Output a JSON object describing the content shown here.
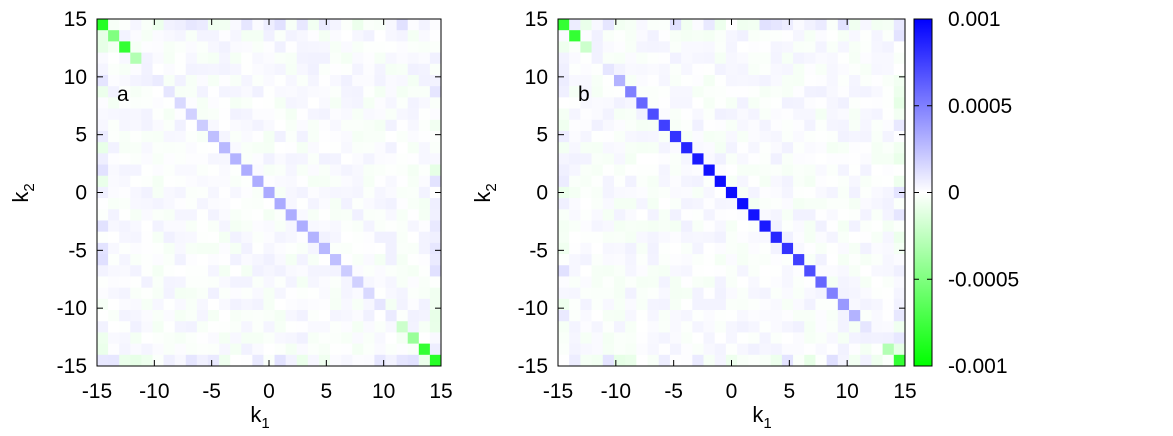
{
  "chart_data": [
    {
      "type": "heatmap",
      "panel_label": "a",
      "xlabel": "k",
      "xlabel_sub": "1",
      "ylabel": "k",
      "ylabel_sub": "2",
      "xlim": [
        -15,
        15
      ],
      "ylim": [
        -15,
        15
      ],
      "xticks": [
        "-15",
        "-10",
        "-5",
        "0",
        "5",
        "10",
        "15"
      ],
      "yticks": [
        "15",
        "10",
        "5",
        "0",
        "-5",
        "-10",
        "-15"
      ],
      "zlim": [
        -0.001,
        0.001
      ],
      "grid": false,
      "diagonal": {
        "description": "anti-diagonal cells k2 = -k1",
        "k1": [
          -15,
          -14,
          -13,
          -12,
          -11,
          -10,
          -9,
          -8,
          -7,
          -6,
          -5,
          -4,
          -3,
          -2,
          -1,
          0,
          1,
          2,
          3,
          4,
          5,
          6,
          7,
          8,
          9,
          10,
          11,
          12,
          13,
          14,
          15
        ],
        "values": [
          -0.00085,
          -0.0005,
          -0.0008,
          -0.0003,
          5e-05,
          8e-05,
          0.0001,
          0.00015,
          0.00018,
          0.0002,
          0.00025,
          0.00028,
          0.0003,
          0.00032,
          0.00032,
          0.00033,
          0.00033,
          0.00032,
          0.00032,
          0.0003,
          0.00028,
          0.00025,
          0.0002,
          0.00018,
          0.00015,
          0.0001,
          8e-05,
          -0.0002,
          -0.0004,
          -0.0008,
          -0.00085
        ]
      },
      "background_noise": 5e-05
    },
    {
      "type": "heatmap",
      "panel_label": "b",
      "xlabel": "k",
      "xlabel_sub": "1",
      "ylabel": "k",
      "ylabel_sub": "2",
      "xlim": [
        -15,
        15
      ],
      "ylim": [
        -15,
        15
      ],
      "xticks": [
        "-15",
        "-10",
        "-5",
        "0",
        "5",
        "10",
        "15"
      ],
      "yticks": [
        "15",
        "10",
        "5",
        "0",
        "-5",
        "-10",
        "-15"
      ],
      "zlim": [
        -0.001,
        0.001
      ],
      "grid": false,
      "diagonal": {
        "description": "anti-diagonal cells k2 = -k1",
        "k1": [
          -15,
          -14,
          -13,
          -12,
          -11,
          -10,
          -9,
          -8,
          -7,
          -6,
          -5,
          -4,
          -3,
          -2,
          -1,
          0,
          1,
          2,
          3,
          4,
          5,
          6,
          7,
          8,
          9,
          10,
          11,
          12,
          13,
          14,
          15
        ],
        "values": [
          -0.0008,
          -0.0008,
          -0.0002,
          5e-05,
          0.0001,
          0.0003,
          0.0005,
          0.0006,
          0.0007,
          0.00075,
          0.0008,
          0.00085,
          0.0009,
          0.00093,
          0.00095,
          0.00095,
          0.00095,
          0.00093,
          0.0009,
          0.00085,
          0.0008,
          0.00075,
          0.0007,
          0.0006,
          0.0005,
          0.0004,
          0.0003,
          0.0001,
          5e-05,
          -0.0003,
          -0.0008
        ]
      },
      "background_noise": 5e-05
    }
  ],
  "colorbar": {
    "ticks": [
      "0.001",
      "0.0005",
      "0",
      "-0.0005",
      "-0.001"
    ],
    "tick_values": [
      0.001,
      0.0005,
      0,
      -0.0005,
      -0.001
    ],
    "colors": {
      "max": "#0000ff",
      "mid": "#ffffff",
      "min": "#00ff00"
    }
  },
  "colors": {
    "positive": "#0000ff",
    "zero": "#ffffff",
    "negative": "#00ff00",
    "frame": "#000000"
  }
}
